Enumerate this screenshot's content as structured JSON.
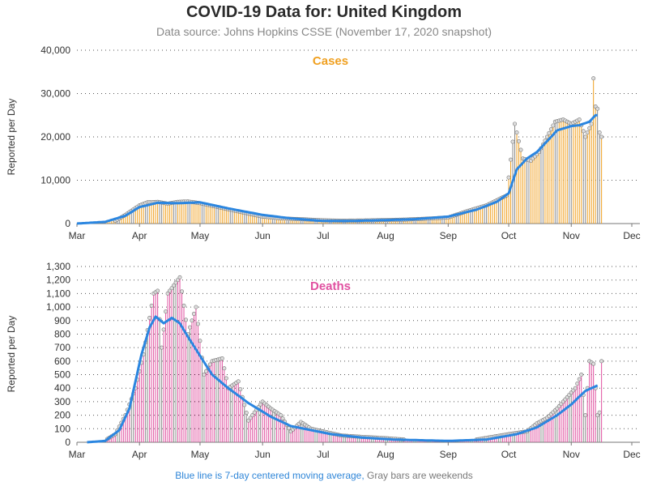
{
  "title": "COVID-19 Data for: United Kingdom",
  "subtitle": "Data source: Johns Hopkins CSSE (November 17, 2020 snapshot)",
  "footer": {
    "blue": "Blue line is 7-day centered moving average,",
    "gray": "Gray bars are weekends"
  },
  "colors": {
    "cases": "#f0a020",
    "deaths": "#e050a0",
    "weekend": "#8a8a8a",
    "avg": "#2b86e0"
  },
  "chart_data": [
    {
      "type": "bar",
      "title": "Cases",
      "ylabel": "Reported per Day",
      "ylim": [
        0,
        40000
      ],
      "yticks": [
        0,
        10000,
        20000,
        30000,
        40000
      ],
      "ytick_labels": [
        "0",
        "10,000",
        "20,000",
        "30,000",
        "40,000"
      ],
      "xticks": [
        "Mar",
        "Apr",
        "May",
        "Jun",
        "Jul",
        "Aug",
        "Sep",
        "Oct",
        "Nov",
        "Dec"
      ],
      "grid": "horizontal dotted",
      "series": [
        {
          "key": "daily",
          "points": [
            [
              "2020-03-01",
              30
            ],
            [
              "2020-03-10",
              100
            ],
            [
              "2020-03-20",
              650
            ],
            [
              "2020-03-25",
              2000
            ],
            [
              "2020-04-01",
              4200
            ],
            [
              "2020-04-05",
              4900
            ],
            [
              "2020-04-10",
              5000
            ],
            [
              "2020-04-15",
              4600
            ],
            [
              "2020-04-20",
              5000
            ],
            [
              "2020-04-25",
              5100
            ],
            [
              "2020-05-01",
              4700
            ],
            [
              "2020-05-10",
              3800
            ],
            [
              "2020-05-20",
              2800
            ],
            [
              "2020-06-01",
              1600
            ],
            [
              "2020-06-10",
              1200
            ],
            [
              "2020-06-20",
              1000
            ],
            [
              "2020-07-01",
              750
            ],
            [
              "2020-07-10",
              650
            ],
            [
              "2020-07-20",
              700
            ],
            [
              "2020-08-01",
              800
            ],
            [
              "2020-08-10",
              900
            ],
            [
              "2020-08-20",
              1100
            ],
            [
              "2020-09-01",
              1400
            ],
            [
              "2020-09-10",
              2800
            ],
            [
              "2020-09-20",
              4200
            ],
            [
              "2020-09-30",
              6500
            ],
            [
              "2020-10-04",
              23000
            ],
            [
              "2020-10-08",
              15000
            ],
            [
              "2020-10-12",
              14500
            ],
            [
              "2020-10-16",
              16500
            ],
            [
              "2020-10-20",
              20000
            ],
            [
              "2020-10-24",
              23500
            ],
            [
              "2020-10-28",
              24000
            ],
            [
              "2020-11-01",
              23000
            ],
            [
              "2020-11-05",
              24000
            ],
            [
              "2020-11-08",
              20000
            ],
            [
              "2020-11-11",
              23000
            ],
            [
              "2020-11-12",
              33500
            ],
            [
              "2020-11-13",
              27000
            ],
            [
              "2020-11-14",
              26500
            ],
            [
              "2020-11-15",
              21000
            ],
            [
              "2020-11-16",
              20000
            ]
          ]
        },
        {
          "key": "avg",
          "points": [
            [
              "2020-03-01",
              0
            ],
            [
              "2020-03-15",
              400
            ],
            [
              "2020-03-25",
              1800
            ],
            [
              "2020-04-01",
              3800
            ],
            [
              "2020-04-10",
              4800
            ],
            [
              "2020-04-20",
              4700
            ],
            [
              "2020-05-01",
              4900
            ],
            [
              "2020-05-15",
              3500
            ],
            [
              "2020-06-01",
              2000
            ],
            [
              "2020-06-15",
              1200
            ],
            [
              "2020-07-01",
              600
            ],
            [
              "2020-07-15",
              600
            ],
            [
              "2020-08-01",
              800
            ],
            [
              "2020-08-15",
              1000
            ],
            [
              "2020-09-01",
              1600
            ],
            [
              "2020-09-15",
              3200
            ],
            [
              "2020-09-25",
              5000
            ],
            [
              "2020-10-01",
              7000
            ],
            [
              "2020-10-05",
              12500
            ],
            [
              "2020-10-10",
              15000
            ],
            [
              "2020-10-15",
              16500
            ],
            [
              "2020-10-20",
              19000
            ],
            [
              "2020-10-25",
              21500
            ],
            [
              "2020-11-01",
              22500
            ],
            [
              "2020-11-05",
              22700
            ],
            [
              "2020-11-10",
              23500
            ],
            [
              "2020-11-13",
              25000
            ],
            [
              "2020-11-14",
              25000
            ]
          ]
        }
      ]
    },
    {
      "type": "bar",
      "title": "Deaths",
      "ylabel": "Reported per Day",
      "ylim": [
        0,
        1300
      ],
      "yticks": [
        0,
        100,
        200,
        300,
        400,
        500,
        600,
        700,
        800,
        900,
        1000,
        1100,
        1200,
        1300
      ],
      "ytick_labels": [
        "0",
        "100",
        "200",
        "300",
        "400",
        "500",
        "600",
        "700",
        "800",
        "900",
        "1,000",
        "1,100",
        "1,200",
        "1,300"
      ],
      "xticks": [
        "Mar",
        "Apr",
        "May",
        "Jun",
        "Jul",
        "Aug",
        "Sep",
        "Oct",
        "Nov",
        "Dec"
      ],
      "grid": "horizontal dotted",
      "series": [
        {
          "key": "daily",
          "points": [
            [
              "2020-03-06",
              0
            ],
            [
              "2020-03-15",
              15
            ],
            [
              "2020-03-20",
              60
            ],
            [
              "2020-03-25",
              200
            ],
            [
              "2020-03-30",
              400
            ],
            [
              "2020-04-03",
              650
            ],
            [
              "2020-04-08",
              1100
            ],
            [
              "2020-04-10",
              1120
            ],
            [
              "2020-04-12",
              700
            ],
            [
              "2020-04-15",
              1100
            ],
            [
              "2020-04-21",
              1220
            ],
            [
              "2020-04-25",
              800
            ],
            [
              "2020-04-29",
              1000
            ],
            [
              "2020-05-03",
              500
            ],
            [
              "2020-05-07",
              600
            ],
            [
              "2020-05-12",
              620
            ],
            [
              "2020-05-15",
              400
            ],
            [
              "2020-05-20",
              450
            ],
            [
              "2020-05-25",
              160
            ],
            [
              "2020-06-01",
              300
            ],
            [
              "2020-06-05",
              250
            ],
            [
              "2020-06-10",
              200
            ],
            [
              "2020-06-15",
              80
            ],
            [
              "2020-06-20",
              150
            ],
            [
              "2020-06-25",
              100
            ],
            [
              "2020-07-01",
              80
            ],
            [
              "2020-07-10",
              50
            ],
            [
              "2020-07-20",
              40
            ],
            [
              "2020-08-01",
              30
            ],
            [
              "2020-08-15",
              15
            ],
            [
              "2020-09-01",
              10
            ],
            [
              "2020-09-15",
              20
            ],
            [
              "2020-10-01",
              60
            ],
            [
              "2020-10-10",
              80
            ],
            [
              "2020-10-15",
              140
            ],
            [
              "2020-10-20",
              180
            ],
            [
              "2020-10-25",
              250
            ],
            [
              "2020-10-28",
              300
            ],
            [
              "2020-11-03",
              400
            ],
            [
              "2020-11-06",
              500
            ],
            [
              "2020-11-08",
              200
            ],
            [
              "2020-11-10",
              600
            ],
            [
              "2020-11-12",
              580
            ],
            [
              "2020-11-13",
              400
            ],
            [
              "2020-11-14",
              200
            ],
            [
              "2020-11-15",
              220
            ],
            [
              "2020-11-16",
              600
            ]
          ]
        },
        {
          "key": "avg",
          "points": [
            [
              "2020-03-06",
              0
            ],
            [
              "2020-03-15",
              10
            ],
            [
              "2020-03-22",
              90
            ],
            [
              "2020-03-27",
              250
            ],
            [
              "2020-04-02",
              650
            ],
            [
              "2020-04-06",
              850
            ],
            [
              "2020-04-09",
              930
            ],
            [
              "2020-04-13",
              880
            ],
            [
              "2020-04-17",
              920
            ],
            [
              "2020-04-21",
              880
            ],
            [
              "2020-04-25",
              780
            ],
            [
              "2020-05-01",
              640
            ],
            [
              "2020-05-07",
              500
            ],
            [
              "2020-05-15",
              400
            ],
            [
              "2020-05-25",
              290
            ],
            [
              "2020-06-05",
              190
            ],
            [
              "2020-06-15",
              120
            ],
            [
              "2020-06-25",
              90
            ],
            [
              "2020-07-05",
              60
            ],
            [
              "2020-07-20",
              35
            ],
            [
              "2020-08-05",
              20
            ],
            [
              "2020-09-01",
              10
            ],
            [
              "2020-09-20",
              20
            ],
            [
              "2020-10-05",
              60
            ],
            [
              "2020-10-15",
              110
            ],
            [
              "2020-10-25",
              200
            ],
            [
              "2020-11-01",
              280
            ],
            [
              "2020-11-08",
              380
            ],
            [
              "2020-11-14",
              420
            ]
          ]
        }
      ]
    }
  ]
}
